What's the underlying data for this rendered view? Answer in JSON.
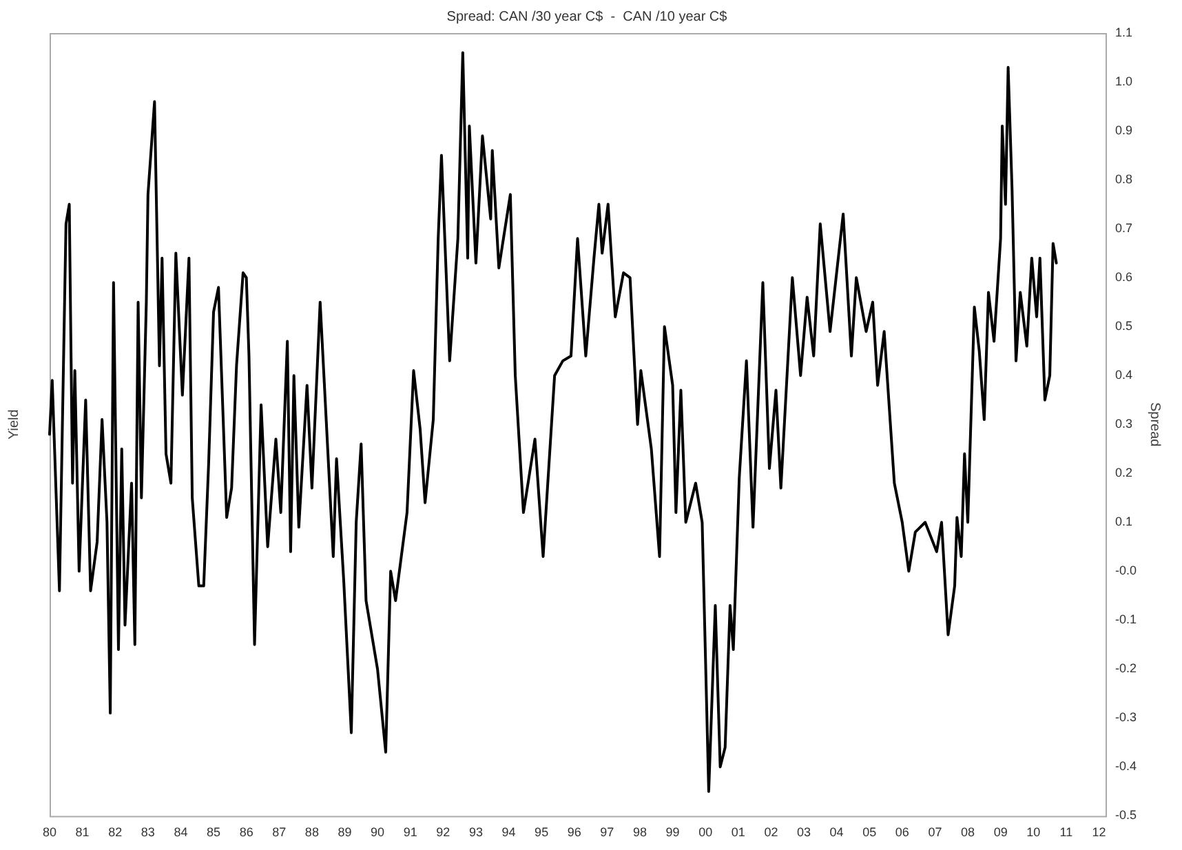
{
  "chart_data": {
    "type": "line",
    "title": "Spread: CAN /30 year C$  -  CAN /10 year C$",
    "ylabel": "Yield",
    "y2label": "Spread",
    "grid": false,
    "legend": false,
    "marker": "none",
    "line_style": "solid",
    "xlim": [
      1980,
      2012.2
    ],
    "xticks": [
      {
        "value": 1980,
        "label": "80"
      },
      {
        "value": 1981,
        "label": "81"
      },
      {
        "value": 1982,
        "label": "82"
      },
      {
        "value": 1983,
        "label": "83"
      },
      {
        "value": 1984,
        "label": "84"
      },
      {
        "value": 1985,
        "label": "85"
      },
      {
        "value": 1986,
        "label": "86"
      },
      {
        "value": 1987,
        "label": "87"
      },
      {
        "value": 1988,
        "label": "88"
      },
      {
        "value": 1989,
        "label": "89"
      },
      {
        "value": 1990,
        "label": "90"
      },
      {
        "value": 1991,
        "label": "91"
      },
      {
        "value": 1992,
        "label": "92"
      },
      {
        "value": 1993,
        "label": "93"
      },
      {
        "value": 1994,
        "label": "94"
      },
      {
        "value": 1995,
        "label": "95"
      },
      {
        "value": 1996,
        "label": "96"
      },
      {
        "value": 1997,
        "label": "97"
      },
      {
        "value": 1998,
        "label": "98"
      },
      {
        "value": 1999,
        "label": "99"
      },
      {
        "value": 2000,
        "label": "00"
      },
      {
        "value": 2001,
        "label": "01"
      },
      {
        "value": 2002,
        "label": "02"
      },
      {
        "value": 2003,
        "label": "03"
      },
      {
        "value": 2004,
        "label": "04"
      },
      {
        "value": 2005,
        "label": "05"
      },
      {
        "value": 2006,
        "label": "06"
      },
      {
        "value": 2007,
        "label": "07"
      },
      {
        "value": 2008,
        "label": "08"
      },
      {
        "value": 2009,
        "label": "09"
      },
      {
        "value": 2010,
        "label": "10"
      },
      {
        "value": 2011,
        "label": "11"
      },
      {
        "value": 2012,
        "label": "12"
      }
    ],
    "y2lim": [
      -0.5,
      1.1
    ],
    "y2ticks": [
      -0.5,
      -0.4,
      -0.3,
      -0.2,
      -0.1,
      {
        "value": 0,
        "label": "-0.0"
      },
      0.1,
      0.2,
      0.3,
      0.4,
      0.5,
      0.6,
      0.7,
      0.8,
      0.9,
      {
        "value": 1,
        "label": "1.0"
      },
      1.1
    ],
    "series": [
      {
        "color": "#000000",
        "axis": "y2",
        "x": [
          1980.0,
          1980.08,
          1980.3,
          1980.5,
          1980.6,
          1980.7,
          1980.77,
          1980.9,
          1981.1,
          1981.25,
          1981.45,
          1981.6,
          1981.75,
          1981.85,
          1981.95,
          1982.1,
          1982.2,
          1982.3,
          1982.5,
          1982.6,
          1982.7,
          1982.8,
          1982.95,
          1983.0,
          1983.2,
          1983.35,
          1983.43,
          1983.55,
          1983.7,
          1983.85,
          1984.05,
          1984.25,
          1984.35,
          1984.55,
          1984.7,
          1984.85,
          1985.0,
          1985.15,
          1985.4,
          1985.55,
          1985.7,
          1985.9,
          1986.0,
          1986.08,
          1986.25,
          1986.45,
          1986.65,
          1986.9,
          1987.05,
          1987.25,
          1987.35,
          1987.45,
          1987.6,
          1987.85,
          1988.0,
          1988.25,
          1988.65,
          1988.75,
          1988.97,
          1989.2,
          1989.35,
          1989.5,
          1989.65,
          1990.0,
          1990.25,
          1990.4,
          1990.55,
          1990.9,
          1991.1,
          1991.3,
          1991.45,
          1991.7,
          1991.85,
          1991.95,
          1992.2,
          1992.45,
          1992.6,
          1992.75,
          1992.8,
          1993.0,
          1993.2,
          1993.45,
          1993.5,
          1993.7,
          1994.05,
          1994.2,
          1994.45,
          1994.8,
          1995.05,
          1995.4,
          1995.65,
          1995.9,
          1996.1,
          1996.35,
          1996.6,
          1996.75,
          1996.85,
          1997.03,
          1997.25,
          1997.5,
          1997.7,
          1997.93,
          1998.03,
          1998.35,
          1998.6,
          1998.75,
          1999.0,
          1999.1,
          1999.25,
          1999.4,
          1999.7,
          1999.9,
          2000.1,
          2000.3,
          2000.45,
          2000.6,
          2000.75,
          2000.85,
          2001.03,
          2001.25,
          2001.45,
          2001.75,
          2001.95,
          2002.15,
          2002.3,
          2002.65,
          2002.9,
          2003.1,
          2003.3,
          2003.5,
          2003.8,
          2004.2,
          2004.45,
          2004.6,
          2004.9,
          2005.1,
          2005.25,
          2005.45,
          2005.76,
          2006.0,
          2006.2,
          2006.4,
          2006.7,
          2007.05,
          2007.2,
          2007.4,
          2007.6,
          2007.67,
          2007.8,
          2007.9,
          2008.0,
          2008.2,
          2008.35,
          2008.5,
          2008.63,
          2008.8,
          2009.0,
          2009.05,
          2009.15,
          2009.23,
          2009.35,
          2009.47,
          2009.6,
          2009.8,
          2009.95,
          2010.1,
          2010.2,
          2010.35,
          2010.5,
          2010.6,
          2010.7
        ],
        "values": [
          0.28,
          0.39,
          -0.04,
          0.71,
          0.75,
          0.18,
          0.41,
          0.0,
          0.35,
          -0.04,
          0.06,
          0.31,
          0.1,
          -0.29,
          0.59,
          -0.16,
          0.25,
          -0.11,
          0.18,
          -0.15,
          0.55,
          0.15,
          0.55,
          0.77,
          0.96,
          0.42,
          0.64,
          0.24,
          0.18,
          0.65,
          0.36,
          0.64,
          0.15,
          -0.03,
          -0.03,
          0.22,
          0.53,
          0.58,
          0.11,
          0.17,
          0.42,
          0.61,
          0.6,
          0.44,
          -0.15,
          0.34,
          0.05,
          0.27,
          0.12,
          0.47,
          0.04,
          0.4,
          0.09,
          0.38,
          0.17,
          0.55,
          0.03,
          0.23,
          -0.02,
          -0.33,
          0.1,
          0.26,
          -0.06,
          -0.2,
          -0.37,
          0.0,
          -0.06,
          0.12,
          0.41,
          0.29,
          0.14,
          0.31,
          0.68,
          0.85,
          0.43,
          0.68,
          1.06,
          0.64,
          0.91,
          0.63,
          0.89,
          0.72,
          0.86,
          0.62,
          0.77,
          0.4,
          0.12,
          0.27,
          0.03,
          0.4,
          0.43,
          0.44,
          0.68,
          0.44,
          0.64,
          0.75,
          0.65,
          0.75,
          0.52,
          0.61,
          0.6,
          0.3,
          0.41,
          0.25,
          0.03,
          0.5,
          0.38,
          0.12,
          0.37,
          0.1,
          0.18,
          0.1,
          -0.45,
          -0.07,
          -0.4,
          -0.36,
          -0.07,
          -0.16,
          0.19,
          0.43,
          0.09,
          0.59,
          0.21,
          0.37,
          0.17,
          0.6,
          0.4,
          0.56,
          0.44,
          0.71,
          0.49,
          0.73,
          0.44,
          0.6,
          0.49,
          0.55,
          0.38,
          0.49,
          0.18,
          0.1,
          0.0,
          0.08,
          0.1,
          0.04,
          0.1,
          -0.13,
          -0.03,
          0.11,
          0.03,
          0.24,
          0.1,
          0.54,
          0.45,
          0.31,
          0.57,
          0.47,
          0.68,
          0.91,
          0.75,
          1.03,
          0.78,
          0.43,
          0.57,
          0.46,
          0.64,
          0.52,
          0.64,
          0.35,
          0.4,
          0.67,
          0.63
        ]
      }
    ]
  }
}
